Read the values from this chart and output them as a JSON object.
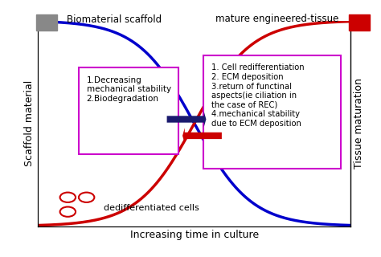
{
  "xlabel": "Increasing time in culture",
  "ylabel_left": "Scaffold material",
  "ylabel_right": "Tissue maturation",
  "blue_label": "Biomaterial scaffold",
  "red_label": "mature engineered-tissue",
  "cell_label": "dedifferentiated cells",
  "box1_text": "1.Decreasing\nmechanical stability\n2.Biodegradation",
  "box2_text": "1. Cell redifferentiation\n2. ECM deposition\n3.return of functinal\naspects(ie ciliation in\nthe case of REC)\n4.mechanical stability\ndue to ECM deposition",
  "box_color": "#cc00cc",
  "blue_color": "#0000cc",
  "red_color": "#cc0000",
  "gray_square_color": "#888888",
  "red_square_color": "#cc0000",
  "arrow_blue_color": "#1a1a6e",
  "arrow_red_color": "#cc0000",
  "bg_color": "#ffffff",
  "xlim": [
    0,
    10
  ],
  "ylim": [
    0,
    1
  ]
}
